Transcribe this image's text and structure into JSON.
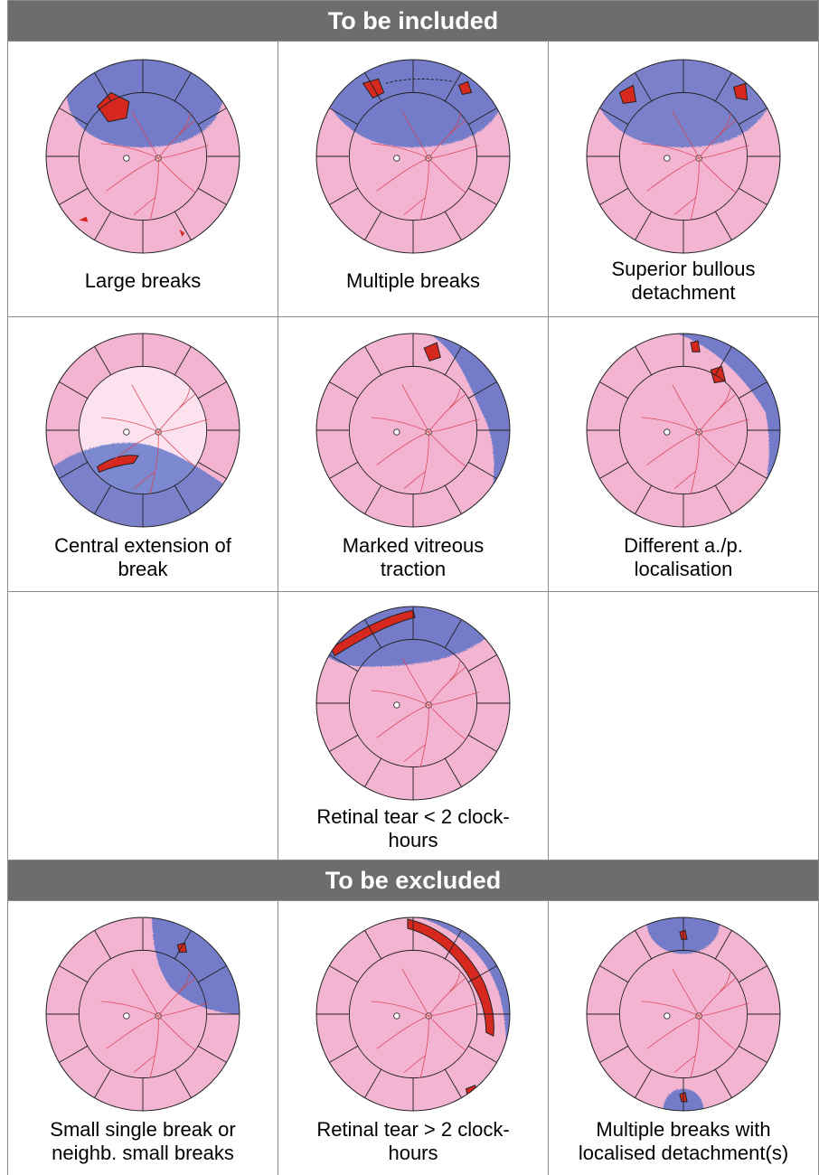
{
  "sections": {
    "included": {
      "title": "To be included"
    },
    "excluded": {
      "title": "To be excluded"
    }
  },
  "cells": {
    "large_breaks": {
      "caption_l1": "Large breaks",
      "caption_l2": ""
    },
    "multiple_breaks": {
      "caption_l1": "Multiple breaks",
      "caption_l2": ""
    },
    "superior_bullous": {
      "caption_l1": "Superior bullous",
      "caption_l2": "detachment"
    },
    "central_extension": {
      "caption_l1": "Central extension of",
      "caption_l2": "break"
    },
    "vitreous_traction": {
      "caption_l1": "Marked vitreous",
      "caption_l2": "traction"
    },
    "different_ap": {
      "caption_l1": "Different a./p.",
      "caption_l2": "localisation"
    },
    "tear_lt2": {
      "caption_l1": "Retinal tear < 2 clock-",
      "caption_l2": "hours"
    },
    "small_single": {
      "caption_l1": "Small single break or",
      "caption_l2": "neighb. small breaks"
    },
    "tear_gt2": {
      "caption_l1": "Retinal tear > 2 clock-",
      "caption_l2": "hours"
    },
    "multi_localised": {
      "caption_l1": "Multiple breaks with",
      "caption_l2": "localised detachment(s)"
    }
  },
  "colors": {
    "header_bg": "#6d6d6d",
    "retina_pink": "#f3b4d2",
    "detachment_blue": "#5d73c8",
    "break_red": "#d6281e",
    "vessel_red": "#d94050",
    "grid_line": "#222222"
  }
}
